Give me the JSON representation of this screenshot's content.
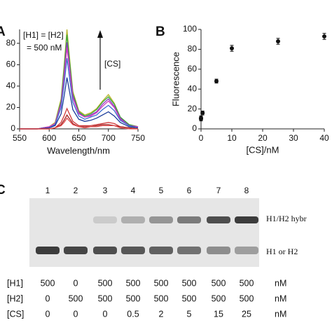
{
  "chart_data": [
    {
      "type": "line",
      "panel": "A",
      "xlabel": "Wavelength/nm",
      "annotations": [
        "[H1] = [H2]",
        "= 500 nM",
        "[CS]"
      ],
      "x": [
        550,
        580,
        600,
        610,
        620,
        625,
        630,
        635,
        640,
        650,
        660,
        670,
        680,
        690,
        700,
        710,
        720,
        735,
        750
      ],
      "xlim": [
        550,
        750
      ],
      "xticks": [
        550,
        600,
        650,
        700,
        750
      ],
      "ylim": [
        0,
        93
      ],
      "yticks": [
        0,
        20,
        40,
        60,
        80
      ],
      "series": [
        {
          "color": "#b8b42a",
          "values": [
            0,
            0,
            2,
            6,
            28,
            58,
            93,
            63,
            35,
            17,
            13,
            15,
            19,
            26,
            32,
            24,
            11,
            4,
            2
          ]
        },
        {
          "color": "#3aa83a",
          "values": [
            0,
            0,
            2,
            5,
            26,
            55,
            88,
            60,
            33,
            16,
            12,
            14,
            18,
            25,
            30,
            23,
            11,
            4,
            2
          ]
        },
        {
          "color": "#8a3ac0",
          "values": [
            0,
            0,
            2,
            5,
            24,
            50,
            81,
            55,
            31,
            15,
            11,
            13,
            16,
            23,
            28,
            21,
            10,
            3,
            2
          ]
        },
        {
          "color": "#d040c0",
          "values": [
            0,
            0,
            2,
            5,
            23,
            47,
            76,
            52,
            29,
            14,
            11,
            12,
            15,
            21,
            26,
            20,
            9,
            3,
            2
          ]
        },
        {
          "color": "#3a6ad0",
          "values": [
            0,
            0,
            1,
            4,
            20,
            41,
            66,
            45,
            25,
            12,
            9,
            11,
            13,
            18,
            22,
            17,
            8,
            3,
            1
          ]
        },
        {
          "color": "#1a3a9a",
          "values": [
            0,
            0,
            1,
            3,
            14,
            30,
            48,
            33,
            18,
            9,
            7,
            8,
            10,
            13,
            16,
            12,
            6,
            2,
            1
          ]
        },
        {
          "color": "#d03a3a",
          "values": [
            0,
            0,
            0,
            1,
            6,
            12,
            19,
            13,
            7,
            3,
            3,
            3,
            4,
            5,
            6,
            5,
            2,
            1,
            0
          ]
        },
        {
          "color": "#a02020",
          "values": [
            0,
            0,
            0,
            1,
            4,
            8,
            13,
            9,
            5,
            2,
            2,
            2,
            3,
            4,
            4,
            3,
            2,
            1,
            0
          ]
        },
        {
          "color": "#e04a4a",
          "values": [
            0,
            0,
            0,
            1,
            3,
            6,
            10,
            7,
            4,
            2,
            1,
            2,
            2,
            3,
            3,
            3,
            1,
            0,
            0
          ]
        }
      ]
    },
    {
      "type": "scatter",
      "panel": "B",
      "xlabel": "[CS]/nM",
      "ylabel": "Fluorescence",
      "x": [
        0,
        0,
        0.5,
        5,
        10,
        25,
        40
      ],
      "values": [
        10,
        11,
        16,
        48,
        81,
        88,
        93
      ],
      "errors": [
        2,
        2,
        2,
        2,
        3,
        3,
        3
      ],
      "color": "#111111",
      "xlim": [
        0,
        40
      ],
      "xticks": [
        0,
        10,
        20,
        30,
        40
      ],
      "ylim": [
        0,
        100
      ],
      "yticks": [
        0,
        20,
        40,
        60,
        80,
        100
      ]
    }
  ],
  "gel": {
    "panel": "C",
    "lanes": [
      "1",
      "2",
      "3",
      "4",
      "5",
      "6",
      "7",
      "8"
    ],
    "band_labels": [
      "H1/H2 hybr",
      "H1 or H2"
    ]
  },
  "table": {
    "rows": [
      [
        "[H1]",
        "500",
        "0",
        "500",
        "500",
        "500",
        "500",
        "500",
        "500",
        "nM"
      ],
      [
        "[H2]",
        "0",
        "500",
        "500",
        "500",
        "500",
        "500",
        "500",
        "500",
        "nM"
      ],
      [
        "[CS]",
        "0",
        "0",
        "0",
        "0.5",
        "2",
        "5",
        "15",
        "25",
        "nM"
      ]
    ]
  }
}
